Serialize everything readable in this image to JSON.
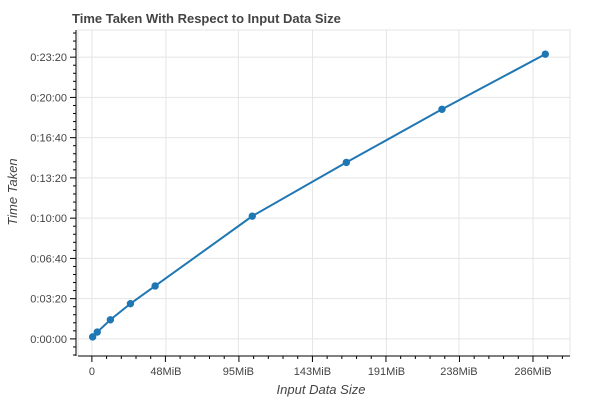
{
  "chart_data": {
    "type": "line",
    "title": "Time Taken With Respect to Input Data Size",
    "xlabel": "Input Data Size",
    "ylabel": "Time Taken",
    "x_unit": "MiB",
    "y_unit": "seconds",
    "xlim": [
      -9,
      310
    ],
    "ylim": [
      -85,
      1535
    ],
    "x_ticks": [
      0,
      48,
      95,
      143,
      191,
      238,
      286
    ],
    "x_tick_labels": [
      "0",
      "48MiB",
      "95MiB",
      "143MiB",
      "191MiB",
      "238MiB",
      "286MiB"
    ],
    "y_ticks": [
      0,
      200,
      400,
      600,
      800,
      1000,
      1200,
      1400
    ],
    "y_tick_labels": [
      "0:00:00",
      "0:03:20",
      "0:06:40",
      "0:10:00",
      "0:13:20",
      "0:16:40",
      "0:20:00",
      "0:23:20"
    ],
    "grid": true,
    "color": "#1f77b4",
    "series": [
      {
        "x": [
          0.5,
          3.5,
          12,
          25,
          41,
          104,
          165,
          227,
          294
        ],
        "y": [
          10,
          34,
          95,
          175,
          263,
          610,
          877,
          1141,
          1415
        ]
      }
    ]
  }
}
